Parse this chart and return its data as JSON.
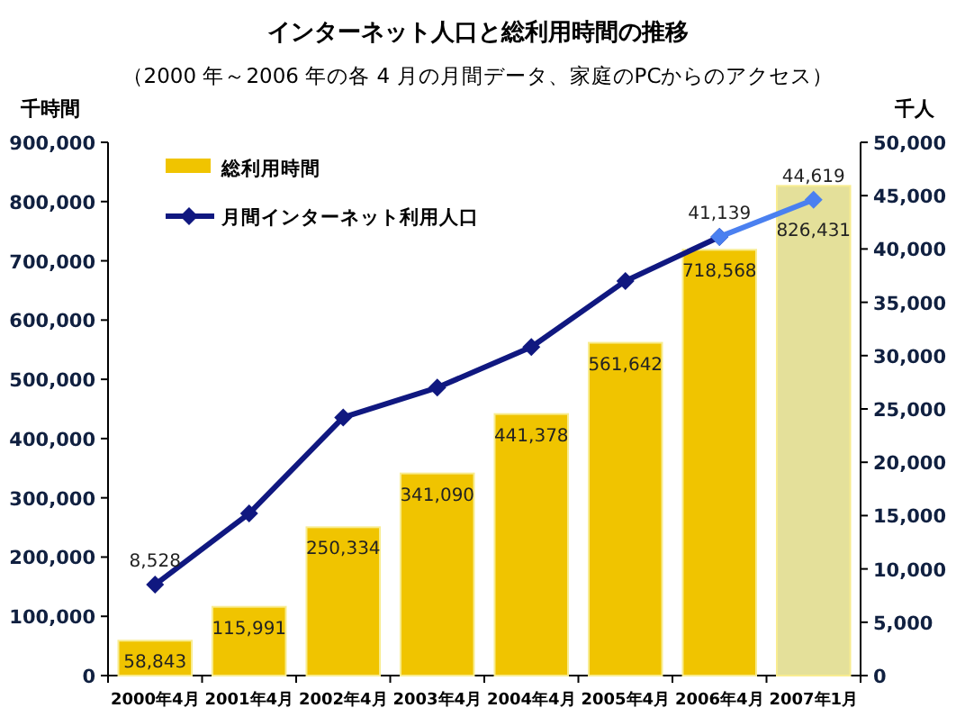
{
  "chart_data": {
    "type": "bar",
    "title": "インターネット人口と総利用時間の推移",
    "subtitle": "（2000 年～2006 年の各 4 月の月間データ、家庭のPCからのアクセス）",
    "ylabel": "千時間",
    "y2label": "千人",
    "categories": [
      "2000年4月",
      "2001年4月",
      "2002年4月",
      "2003年4月",
      "2004年4月",
      "2005年4月",
      "2006年4月",
      "2007年1月"
    ],
    "series": [
      {
        "name": "総利用時間",
        "color": "#f0c400",
        "colors": [
          "#f0c400",
          "#f0c400",
          "#f0c400",
          "#f0c400",
          "#f0c400",
          "#f0c400",
          "#f0c400",
          "#e4e09a"
        ],
        "values": [
          58843,
          115991,
          250334,
          341090,
          441378,
          561642,
          718568,
          826431
        ],
        "value_labels": [
          "58,843",
          "115,991",
          "250,334",
          "341,090",
          "441,378",
          "561,642",
          "718,568",
          "826,431"
        ]
      },
      {
        "name": "月間インターネット利用人口",
        "type": "line",
        "axis": "y2",
        "marker": "diamond",
        "color": "#101880",
        "values": [
          8528,
          15200,
          24200,
          27000,
          30800,
          37000,
          41139,
          null
        ],
        "value_labels": [
          "8,528",
          null,
          null,
          null,
          null,
          null,
          "41,139",
          null
        ]
      },
      {
        "type": "line",
        "axis": "y2",
        "marker": "diamond",
        "color": "#4a80f0",
        "values": [
          null,
          null,
          null,
          null,
          null,
          null,
          41139,
          44619
        ],
        "value_labels": [
          null,
          null,
          null,
          null,
          null,
          null,
          null,
          "44,619"
        ]
      }
    ],
    "ylim": [
      0,
      900000
    ],
    "yticks": [
      0,
      {
        "value": 100000,
        "label": "100,000"
      },
      {
        "value": 200000,
        "label": "200,000"
      },
      {
        "value": 300000,
        "label": "300,000"
      },
      {
        "value": 400000,
        "label": "400,000"
      },
      {
        "value": 500000,
        "label": "500,000"
      },
      {
        "value": 600000,
        "label": "600,000"
      },
      {
        "value": 700000,
        "label": "700,000"
      },
      {
        "value": 800000,
        "label": "800,000"
      },
      {
        "value": 900000,
        "label": "900,000"
      }
    ],
    "y2lim": [
      0,
      50000
    ],
    "y2ticks": [
      0,
      {
        "value": 5000,
        "label": "5,000"
      },
      {
        "value": 10000,
        "label": "10,000"
      },
      {
        "value": 15000,
        "label": "15,000"
      },
      {
        "value": 20000,
        "label": "20,000"
      },
      {
        "value": 25000,
        "label": "25,000"
      },
      {
        "value": 30000,
        "label": "30,000"
      },
      {
        "value": 35000,
        "label": "35,000"
      },
      {
        "value": 40000,
        "label": "40,000"
      },
      {
        "value": 45000,
        "label": "45,000"
      },
      {
        "value": 50000,
        "label": "50,000"
      }
    ],
    "legend": "top left",
    "grid": false
  }
}
